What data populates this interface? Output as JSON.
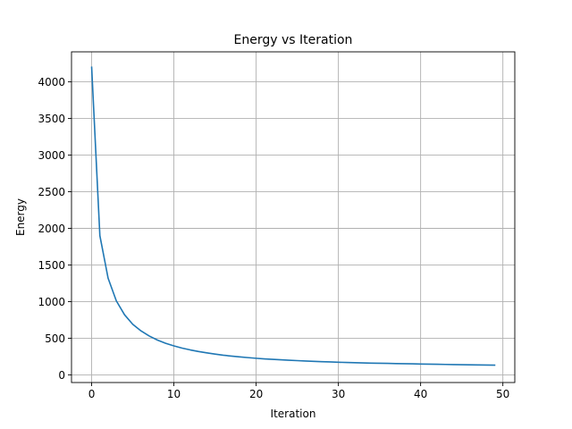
{
  "chart_data": {
    "type": "line",
    "title": "Energy vs Iteration",
    "xlabel": "Iteration",
    "ylabel": "Energy",
    "xlim": [
      -2.45,
      51.45
    ],
    "ylim": [
      -105,
      4410
    ],
    "xticks": [
      0,
      10,
      20,
      30,
      40,
      50
    ],
    "yticks": [
      0,
      500,
      1000,
      1500,
      2000,
      2500,
      3000,
      3500,
      4000
    ],
    "grid": true,
    "series": [
      {
        "name": "Energy",
        "color": "#1f77b4",
        "x": [
          0,
          1,
          2,
          3,
          4,
          5,
          6,
          7,
          8,
          9,
          10,
          11,
          12,
          13,
          14,
          15,
          16,
          17,
          18,
          19,
          20,
          21,
          22,
          23,
          24,
          25,
          26,
          27,
          28,
          29,
          30,
          31,
          32,
          33,
          34,
          35,
          36,
          37,
          38,
          39,
          40,
          41,
          42,
          43,
          44,
          45,
          46,
          47,
          48,
          49
        ],
        "y": [
          4200,
          1900,
          1320,
          1010,
          820,
          690,
          600,
          530,
          475,
          430,
          395,
          365,
          340,
          318,
          300,
          283,
          268,
          256,
          245,
          235,
          226,
          218,
          211,
          205,
          199,
          194,
          189,
          184,
          180,
          176,
          172,
          169,
          166,
          163,
          160,
          158,
          156,
          154,
          152,
          150,
          148,
          146,
          144,
          142,
          140,
          138,
          137,
          135,
          134,
          132
        ]
      }
    ]
  }
}
